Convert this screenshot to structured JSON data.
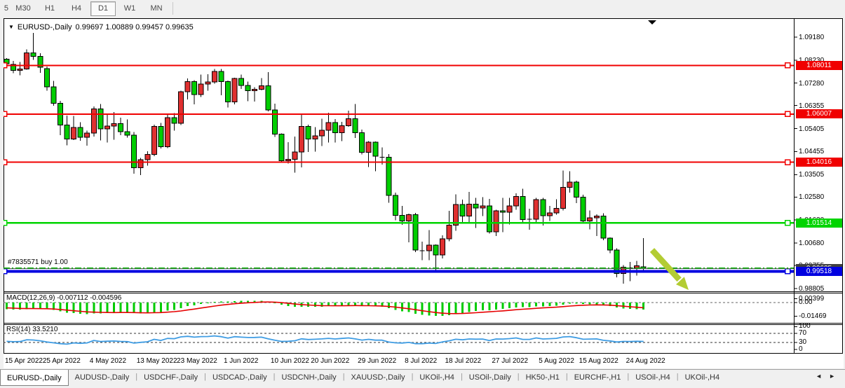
{
  "toolbar": {
    "timeframes": [
      "5",
      "M30",
      "H1",
      "H4",
      "D1",
      "W1",
      "MN"
    ],
    "active": "D1"
  },
  "chart_data": {
    "type": "candlestick",
    "title": {
      "symbol": "EURUSD-,Daily",
      "ohlc": "0.99697 1.00889 0.99457 0.99635"
    },
    "open": "0.99697",
    "high": "1.00889",
    "low": "0.99457",
    "close": "0.99635",
    "colors": {
      "bull": "#E03030",
      "bear": "#00CE00",
      "outline": "#000000",
      "hline_red": "#F00000",
      "hline_green": "#00D400",
      "hline_blue": "#0000E0",
      "trade_green": "#00A800",
      "bid_gray": "#555555",
      "rsi_blue": "#3E9CE3",
      "macd_bar": "#00CC00",
      "macd_signal": "#E60000",
      "arrow": "#B3CC33"
    },
    "y_ticks": [
      "1.09180",
      "1.08230",
      "1.07280",
      "1.06355",
      "1.05405",
      "1.04455",
      "1.03505",
      "1.02580",
      "1.01630",
      "1.00680",
      "0.99755",
      "0.98805"
    ],
    "x_labels": [
      [
        "15 Apr 2022",
        0
      ],
      [
        "25 Apr 2022",
        6
      ],
      [
        "4 May 2022",
        13
      ],
      [
        "13 May 2022",
        20
      ],
      [
        "23 May 2022",
        26
      ],
      [
        "1 Jun 2022",
        33
      ],
      [
        "10 Jun 2022",
        40
      ],
      [
        "20 Jun 2022",
        46
      ],
      [
        "29 Jun 2022",
        53
      ],
      [
        "8 Jul 2022",
        60
      ],
      [
        "18 Jul 2022",
        66
      ],
      [
        "27 Jul 2022",
        73
      ],
      [
        "5 Aug 2022",
        80
      ],
      [
        "15 Aug 2022",
        86
      ],
      [
        "24 Aug 2022",
        93
      ]
    ],
    "hlines": [
      {
        "price": 1.08011,
        "label": "1.08011",
        "color_key": "hline_red",
        "width": 2
      },
      {
        "price": 1.06007,
        "label": "1.06007",
        "color_key": "hline_red",
        "width": 2
      },
      {
        "price": 1.04016,
        "label": "1.04016",
        "color_key": "hline_red",
        "width": 2
      },
      {
        "price": 1.01514,
        "label": "1.01514",
        "color_key": "hline_green",
        "width": 2.5
      },
      {
        "price": 0.99518,
        "label": "0.99518",
        "color_key": "hline_blue",
        "width": 4
      }
    ],
    "bid_line": {
      "price": 0.99635,
      "label": "0.99635"
    },
    "trade_line": {
      "price": 0.9965,
      "label": "#7835571 buy 1.00"
    },
    "indicators": {
      "macd": {
        "display": "MACD(12,26,9) -0.007112 -0.004596",
        "fast": 12,
        "slow": 26,
        "signal": 9,
        "value_main": -0.007112,
        "value_signal": -0.004596,
        "axis_labels": [
          "0.00399",
          "0.00",
          "-0.01469"
        ],
        "axis_max": 0.00399,
        "axis_min": -0.01469
      },
      "rsi": {
        "display": "RSI(14) 33.5210",
        "period": 14,
        "value": 33.521,
        "axis_labels": [
          "100",
          "70",
          "30",
          "0"
        ],
        "levels": [
          70,
          30
        ],
        "range": [
          0,
          100
        ]
      }
    },
    "pre_closes": [
      1.1345,
      1.1304,
      1.136,
      1.1356,
      1.1315,
      1.131,
      1.1239,
      1.1306,
      1.1219,
      1.1126,
      1.1216,
      1.1121,
      1.1085,
      1.0926,
      1.0859,
      1.0932,
      1.0983,
      1.1091,
      1.104,
      1.0954,
      1.0896,
      1.0912,
      1.1013,
      1.1035,
      1.1104,
      1.1013,
      1.0981,
      1.0985,
      1.1,
      1.1104,
      1.1157,
      1.1096,
      1.1064,
      1.1048,
      1.1076,
      1.1046,
      1.0966,
      1.0898,
      1.0907,
      1.0915,
      1.0893,
      1.0878,
      1.0909,
      1.0873,
      1.0829,
      1.0783
    ],
    "candles": [
      [
        1.0827,
        1.0832,
        1.0799,
        1.0808
      ],
      [
        1.0806,
        1.082,
        1.0769,
        1.0781
      ],
      [
        1.0781,
        1.0815,
        1.0761,
        1.0786
      ],
      [
        1.0786,
        1.0867,
        1.0783,
        1.0853
      ],
      [
        1.0853,
        1.0936,
        1.0824,
        1.0838
      ],
      [
        1.0838,
        1.0852,
        1.077,
        1.0794
      ],
      [
        1.0788,
        1.0797,
        1.0697,
        1.0713
      ],
      [
        1.0713,
        1.0738,
        1.0635,
        1.0645
      ],
      [
        1.0645,
        1.0655,
        1.0514,
        1.0556
      ],
      [
        1.0556,
        1.0594,
        1.0471,
        1.0498
      ],
      [
        1.0498,
        1.0593,
        1.0493,
        1.0545
      ],
      [
        1.0545,
        1.0567,
        1.049,
        1.0505
      ],
      [
        1.0505,
        1.0532,
        1.047,
        1.0522
      ],
      [
        1.0522,
        1.0632,
        1.0507,
        1.0622
      ],
      [
        1.0622,
        1.0642,
        1.0492,
        1.054
      ],
      [
        1.054,
        1.0599,
        1.0483,
        1.0551
      ],
      [
        1.0551,
        1.0609,
        1.0495,
        1.0561
      ],
      [
        1.0561,
        1.0585,
        1.0513,
        1.0528
      ],
      [
        1.0528,
        1.0578,
        1.0503,
        1.0514
      ],
      [
        1.0514,
        1.0527,
        1.0354,
        1.0379
      ],
      [
        1.0379,
        1.042,
        1.0348,
        1.0412
      ],
      [
        1.0412,
        1.0447,
        1.0388,
        1.0434
      ],
      [
        1.0434,
        1.0557,
        1.0427,
        1.0549
      ],
      [
        1.0549,
        1.0564,
        1.0459,
        1.0465
      ],
      [
        1.0465,
        1.0599,
        1.046,
        1.0586
      ],
      [
        1.0586,
        1.0605,
        1.0532,
        1.0563
      ],
      [
        1.0563,
        1.0697,
        1.0556,
        1.0692
      ],
      [
        1.0692,
        1.0748,
        1.0661,
        1.0735
      ],
      [
        1.0735,
        1.074,
        1.0641,
        1.0681
      ],
      [
        1.0681,
        1.0764,
        1.0671,
        1.0724
      ],
      [
        1.0724,
        1.0765,
        1.0697,
        1.0733
      ],
      [
        1.0733,
        1.0786,
        1.0726,
        1.0777
      ],
      [
        1.0777,
        1.0787,
        1.0678,
        1.0734
      ],
      [
        1.0734,
        1.0739,
        1.0627,
        1.065
      ],
      [
        1.065,
        1.0751,
        1.0641,
        1.0747
      ],
      [
        1.0747,
        1.0764,
        1.0704,
        1.0719
      ],
      [
        1.0719,
        1.0734,
        1.0653,
        1.0697
      ],
      [
        1.0697,
        1.0712,
        1.0652,
        1.0703
      ],
      [
        1.0703,
        1.0749,
        1.0699,
        1.0717
      ],
      [
        1.0717,
        1.0774,
        1.0611,
        1.0617
      ],
      [
        1.0617,
        1.0643,
        1.0506,
        1.0518
      ],
      [
        1.0518,
        1.052,
        1.0399,
        1.0408
      ],
      [
        1.0408,
        1.0485,
        1.0397,
        1.0414
      ],
      [
        1.0414,
        1.0507,
        1.0359,
        1.0444
      ],
      [
        1.0444,
        1.0601,
        1.0381,
        1.055
      ],
      [
        1.055,
        1.0557,
        1.0444,
        1.0497
      ],
      [
        1.0497,
        1.0547,
        1.0445,
        1.0511
      ],
      [
        1.0511,
        1.0582,
        1.0469,
        1.0534
      ],
      [
        1.0534,
        1.0606,
        1.0483,
        1.0566
      ],
      [
        1.0566,
        1.058,
        1.0483,
        1.0523
      ],
      [
        1.0523,
        1.0569,
        1.0489,
        1.0553
      ],
      [
        1.0553,
        1.0615,
        1.0548,
        1.0581
      ],
      [
        1.0581,
        1.0642,
        1.0502,
        1.0523
      ],
      [
        1.0523,
        1.0536,
        1.0434,
        1.0442
      ],
      [
        1.0442,
        1.0489,
        1.0382,
        1.0484
      ],
      [
        1.0484,
        1.0487,
        1.0365,
        1.0426
      ],
      [
        1.0426,
        1.0463,
        1.0392,
        1.0423
      ],
      [
        1.0423,
        1.0436,
        1.0235,
        1.0265
      ],
      [
        1.0265,
        1.0277,
        1.0162,
        1.0183
      ],
      [
        1.0183,
        1.0221,
        1.0144,
        1.016
      ],
      [
        1.016,
        1.019,
        1.0071,
        1.0186
      ],
      [
        1.0186,
        1.0193,
        1.0031,
        1.004
      ],
      [
        1.004,
        1.0074,
        0.9998,
        1.0037
      ],
      [
        1.0037,
        1.0122,
        0.9998,
        1.006
      ],
      [
        1.006,
        1.0062,
        0.9952,
        1.0019
      ],
      [
        1.0019,
        1.01,
        1.0005,
        1.0086
      ],
      [
        1.0086,
        1.0201,
        1.0076,
        1.0142
      ],
      [
        1.0142,
        1.0269,
        1.0119,
        1.0227
      ],
      [
        1.0227,
        1.0247,
        1.0155,
        1.018
      ],
      [
        1.018,
        1.0279,
        1.0152,
        1.0229
      ],
      [
        1.0229,
        1.0254,
        1.0131,
        1.0213
      ],
      [
        1.0213,
        1.0258,
        1.018,
        1.0221
      ],
      [
        1.0221,
        1.025,
        1.0108,
        1.0115
      ],
      [
        1.0115,
        1.0205,
        1.0097,
        1.0201
      ],
      [
        1.0201,
        1.0254,
        1.0113,
        1.0196
      ],
      [
        1.0196,
        1.0254,
        1.0145,
        1.0221
      ],
      [
        1.0221,
        1.0274,
        1.0206,
        1.0261
      ],
      [
        1.0261,
        1.0293,
        1.0154,
        1.0165
      ],
      [
        1.0165,
        1.021,
        1.0123,
        1.0166
      ],
      [
        1.0166,
        1.0254,
        1.0151,
        1.0247
      ],
      [
        1.0247,
        1.0254,
        1.0141,
        1.0181
      ],
      [
        1.0181,
        1.0221,
        1.0159,
        1.0193
      ],
      [
        1.0193,
        1.0249,
        1.0185,
        1.0212
      ],
      [
        1.0212,
        1.0368,
        1.0202,
        1.0298
      ],
      [
        1.0298,
        1.0365,
        1.0276,
        1.032
      ],
      [
        1.032,
        1.0326,
        1.0233,
        1.0258
      ],
      [
        1.0258,
        1.0268,
        1.0154,
        1.016
      ],
      [
        1.016,
        1.0203,
        1.0125,
        1.0172
      ],
      [
        1.0172,
        1.0187,
        1.0097,
        1.018
      ],
      [
        1.018,
        1.0191,
        1.008,
        1.0088
      ],
      [
        1.0088,
        1.0092,
        1.0026,
        1.004
      ],
      [
        1.004,
        1.0046,
        0.9926,
        0.9942
      ],
      [
        0.9942,
        0.9977,
        0.9901,
        0.9969
      ],
      [
        0.9969,
        0.999,
        0.9911,
        0.9966
      ],
      [
        0.9966,
        0.9994,
        0.9934,
        0.9974
      ],
      [
        0.99697,
        1.00889,
        0.99457,
        0.99635
      ]
    ],
    "annotations": {
      "arrow": {
        "shape": "down-right-arrow"
      },
      "shift_marker": {
        "shape": "triangle-down"
      }
    }
  },
  "tabs": {
    "items": [
      {
        "label": "EURUSD-,Daily",
        "active": true
      },
      {
        "label": "AUDUSD-,Daily",
        "active": false
      },
      {
        "label": "USDCHF-,Daily",
        "active": false
      },
      {
        "label": "USDCAD-,Daily",
        "active": false
      },
      {
        "label": "USDCNH-,Daily",
        "active": false
      },
      {
        "label": "XAUUSD-,Daily",
        "active": false
      },
      {
        "label": "UKOil-,H4",
        "active": false
      },
      {
        "label": "USOil-,Daily",
        "active": false
      },
      {
        "label": "HK50-,H1",
        "active": false
      },
      {
        "label": "EURCHF-,H1",
        "active": false
      },
      {
        "label": "USOil-,H4",
        "active": false
      },
      {
        "label": "UKOil-,H4",
        "active": false
      }
    ],
    "scroll_left": "◄",
    "scroll_right": "►"
  }
}
